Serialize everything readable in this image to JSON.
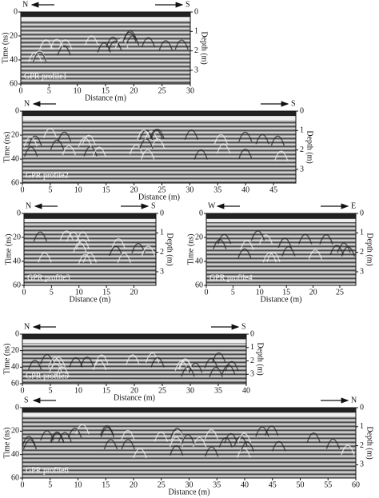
{
  "panels": [
    {
      "label": "GPR profile1",
      "left_dir": "N",
      "right_dir": "S",
      "x_label": "Distance (m)",
      "y_label": "Time (ns)",
      "y2_label": "Depth (m)",
      "xlim": [
        0,
        30
      ],
      "xticks": [
        0,
        5,
        10,
        15,
        20,
        25,
        30
      ],
      "ylim": [
        0,
        60
      ],
      "yticks": [
        0,
        20,
        40,
        60
      ],
      "y2lim": [
        0,
        3.7
      ],
      "y2ticks": [
        0,
        1,
        2,
        3
      ]
    },
    {
      "label": "GPR profile2",
      "left_dir": "N",
      "right_dir": "S",
      "x_label": "Distance (m)",
      "y_label": "Time (ns)",
      "y2_label": "Depth (m)",
      "xlim": [
        0,
        49
      ],
      "xticks": [
        0,
        5,
        10,
        15,
        20,
        25,
        30,
        35,
        40,
        45
      ],
      "ylim": [
        0,
        60
      ],
      "yticks": [
        0,
        20,
        40,
        60
      ],
      "y2lim": [
        0,
        3.7
      ],
      "y2ticks": [
        0,
        1,
        2,
        3
      ]
    },
    {
      "label": "GPR profile3",
      "left_dir": "N",
      "right_dir": "S",
      "x_label": "Distance (m)",
      "y_label": "Time (ns)",
      "y2_label": "Depth (m)",
      "xlim": [
        0,
        24
      ],
      "xticks": [
        0,
        5,
        10,
        15,
        20
      ],
      "ylim": [
        0,
        60
      ],
      "yticks": [
        0,
        20,
        40,
        60
      ],
      "y2lim": [
        0,
        3.7
      ],
      "y2ticks": [
        0,
        1,
        2,
        3
      ]
    },
    {
      "label": "GPR profile4",
      "left_dir": "W",
      "right_dir": "E",
      "x_label": "Distance (m)",
      "y_label": "Time (ns)",
      "y2_label": "Depth (m)",
      "xlim": [
        0,
        28
      ],
      "xticks": [
        0,
        5,
        10,
        15,
        20,
        25
      ],
      "ylim": [
        0,
        60
      ],
      "yticks": [
        0,
        20,
        40,
        60
      ],
      "y2lim": [
        0,
        3.7
      ],
      "y2ticks": [
        0,
        1,
        2,
        3
      ]
    },
    {
      "label": "GPR profile5",
      "left_dir": "N",
      "right_dir": "S",
      "x_label": "Distance (m)",
      "y_label": "Time (ns)",
      "y2_label": "Depth (m)",
      "xlim": [
        0,
        40
      ],
      "xticks": [
        0,
        5,
        10,
        15,
        20,
        25,
        30,
        35,
        40
      ],
      "ylim": [
        0,
        60
      ],
      "yticks": [
        0,
        20,
        40,
        60
      ],
      "y2lim": [
        0,
        3.7
      ],
      "y2ticks": [
        0,
        1,
        2,
        3
      ]
    },
    {
      "label": "GPR profile6",
      "left_dir": "S",
      "right_dir": "N",
      "x_label": "Distance (m)",
      "y_label": "Time (ns)",
      "y2_label": "Depth (m)",
      "xlim": [
        0,
        60
      ],
      "xticks": [
        0,
        5,
        10,
        15,
        20,
        25,
        30,
        35,
        40,
        45,
        50,
        55,
        60
      ],
      "ylim": [
        0,
        60
      ],
      "yticks": [
        0,
        20,
        40,
        60
      ],
      "y2lim": [
        0,
        3.7
      ],
      "y2ticks": [
        0,
        1,
        2,
        3
      ]
    }
  ]
}
